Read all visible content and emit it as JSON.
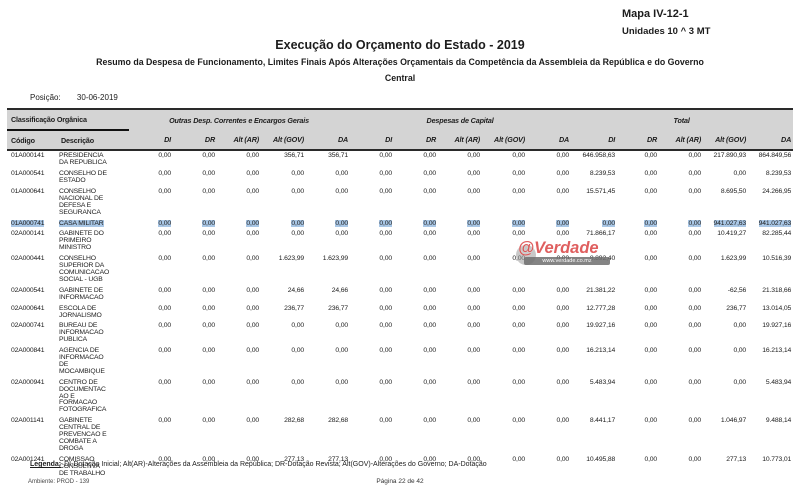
{
  "page": {
    "map_ref": "Mapa IV-12-1",
    "units": "Unidades 10 ^ 3 MT",
    "title": "Execução do Orçamento do Estado -  2019",
    "subtitle": "Resumo da Despesa de Funcionamento, Limites Finais Após Alterações Orçamentais da Competência da Assembleia da República e do Governo",
    "scope": "Central",
    "position_label": "Posição:",
    "position_date": "30-06-2019"
  },
  "table": {
    "groups": {
      "org": "Classificação Orgânica",
      "outras": "Outras Desp. Correntes e Encargos Gerais",
      "capital": "Despesas de Capital",
      "total": "Total"
    },
    "columns": [
      "Código",
      "Descrição",
      "DI",
      "DR",
      "Alt (AR)",
      "Alt (GOV)",
      "DA",
      "DI",
      "DR",
      "Alt (AR)",
      "Alt (GOV)",
      "DA",
      "DI",
      "DR",
      "Alt (AR)",
      "Alt (GOV)",
      "DA"
    ],
    "rows": [
      {
        "code": "01A000141",
        "desc": "PRESIDENCIA\nDA REPUBLICA",
        "highlight": false,
        "values": [
          "0,00",
          "0,00",
          "0,00",
          "356,71",
          "356,71",
          "0,00",
          "0,00",
          "0,00",
          "0,00",
          "0,00",
          "646.958,63",
          "0,00",
          "0,00",
          "217.890,93",
          "864.849,56"
        ]
      },
      {
        "code": "01A000541",
        "desc": "CONSELHO DE\nESTADO",
        "highlight": false,
        "values": [
          "0,00",
          "0,00",
          "0,00",
          "0,00",
          "0,00",
          "0,00",
          "0,00",
          "0,00",
          "0,00",
          "0,00",
          "8.239,53",
          "0,00",
          "0,00",
          "0,00",
          "8.239,53"
        ]
      },
      {
        "code": "01A000641",
        "desc": "CONSELHO\nNACIONAL DE\nDEFESA E\nSEGURANCA",
        "highlight": false,
        "values": [
          "0,00",
          "0,00",
          "0,00",
          "0,00",
          "0,00",
          "0,00",
          "0,00",
          "0,00",
          "0,00",
          "0,00",
          "15.571,45",
          "0,00",
          "0,00",
          "8.695,50",
          "24.266,95"
        ]
      },
      {
        "code": "01A000741",
        "desc": "CASA MILITAR",
        "highlight": true,
        "values": [
          "0,00",
          "0,00",
          "0,00",
          "0,00",
          "0,00",
          "0,00",
          "0,00",
          "0,00",
          "0,00",
          "0,00",
          "0,00",
          "0,00",
          "0,00",
          "941.027,63",
          "941.027,63"
        ]
      },
      {
        "code": "02A000141",
        "desc": "GABINETE DO\nPRIMEIRO\nMINISTRO",
        "highlight": false,
        "values": [
          "0,00",
          "0,00",
          "0,00",
          "0,00",
          "0,00",
          "0,00",
          "0,00",
          "0,00",
          "0,00",
          "0,00",
          "71.866,17",
          "0,00",
          "0,00",
          "10.419,27",
          "82.285,44"
        ]
      },
      {
        "code": "02A000441",
        "desc": "CONSELHO\nSUPERIOR DA\nCOMUNICACAO\nSOCIAL - UGB",
        "highlight": false,
        "values": [
          "0,00",
          "0,00",
          "0,00",
          "1.623,99",
          "1.623,99",
          "0,00",
          "0,00",
          "0,00",
          "0,00",
          "0,00",
          "8.892,40",
          "0,00",
          "0,00",
          "1.623,99",
          "10.516,39"
        ]
      },
      {
        "code": "02A000541",
        "desc": "GABINETE DE\nINFORMACAO",
        "highlight": false,
        "values": [
          "0,00",
          "0,00",
          "0,00",
          "24,66",
          "24,66",
          "0,00",
          "0,00",
          "0,00",
          "0,00",
          "0,00",
          "21.381,22",
          "0,00",
          "0,00",
          "-62,56",
          "21.318,66"
        ]
      },
      {
        "code": "02A000641",
        "desc": "ESCOLA DE\nJORNALISMO",
        "highlight": false,
        "values": [
          "0,00",
          "0,00",
          "0,00",
          "236,77",
          "236,77",
          "0,00",
          "0,00",
          "0,00",
          "0,00",
          "0,00",
          "12.777,28",
          "0,00",
          "0,00",
          "236,77",
          "13.014,05"
        ]
      },
      {
        "code": "02A000741",
        "desc": "BUREAU DE\nINFORMACAO\nPUBLICA",
        "highlight": false,
        "values": [
          "0,00",
          "0,00",
          "0,00",
          "0,00",
          "0,00",
          "0,00",
          "0,00",
          "0,00",
          "0,00",
          "0,00",
          "19.927,16",
          "0,00",
          "0,00",
          "0,00",
          "19.927,16"
        ]
      },
      {
        "code": "02A000841",
        "desc": "AGENCIA DE\nINFORMACAO\nDE\nMOCAMBIQUE",
        "highlight": false,
        "values": [
          "0,00",
          "0,00",
          "0,00",
          "0,00",
          "0,00",
          "0,00",
          "0,00",
          "0,00",
          "0,00",
          "0,00",
          "16.213,14",
          "0,00",
          "0,00",
          "0,00",
          "16.213,14"
        ]
      },
      {
        "code": "02A000941",
        "desc": "CENTRO DE\nDOCUMENTAC\nAO E\nFORMACAO\nFOTOGRAFICA",
        "highlight": false,
        "values": [
          "0,00",
          "0,00",
          "0,00",
          "0,00",
          "0,00",
          "0,00",
          "0,00",
          "0,00",
          "0,00",
          "0,00",
          "5.483,94",
          "0,00",
          "0,00",
          "0,00",
          "5.483,94"
        ]
      },
      {
        "code": "02A001141",
        "desc": "GABINETE\nCENTRAL DE\nPREVENCAO E\nCOMBATE A\nDROGA",
        "highlight": false,
        "values": [
          "0,00",
          "0,00",
          "0,00",
          "282,68",
          "282,68",
          "0,00",
          "0,00",
          "0,00",
          "0,00",
          "0,00",
          "8.441,17",
          "0,00",
          "0,00",
          "1.046,97",
          "9.488,14"
        ]
      },
      {
        "code": "02A001241",
        "desc": "COMISSAO\nCONSULTIVA\nDE TRABALHO",
        "highlight": false,
        "values": [
          "0,00",
          "0,00",
          "0,00",
          "277,13",
          "277,13",
          "0,00",
          "0,00",
          "0,00",
          "0,00",
          "0,00",
          "10.495,88",
          "0,00",
          "0,00",
          "277,13",
          "10.773,01"
        ]
      }
    ]
  },
  "watermark": {
    "text": "@Verdade",
    "url": "www.verdade.co.mz"
  },
  "footer": {
    "legend_label": "Legenda:",
    "legend_text": "DI-Dotação Inicial; Alt(AR)-Alterações da Assembleia da República; DR-Dotação Revista; Alt(GOV)-Alterações do Governo; DA-Dotação",
    "environment": "Ambiente: PROD - 139",
    "page_number": "Página 22 de 42"
  },
  "colors": {
    "highlight_blue": "#a9c7e6",
    "header_band_gray": "#d4d4d4",
    "watermark_red": "#db4a4a"
  }
}
